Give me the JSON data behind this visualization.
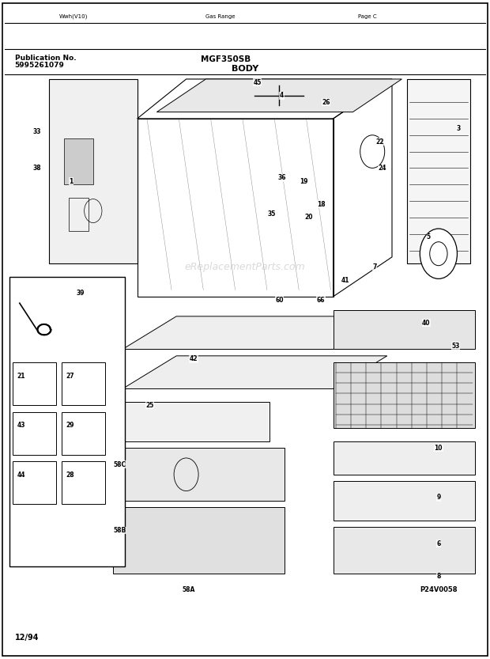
{
  "bg_color": "#ffffff",
  "border_color": "#000000",
  "title_text": "BODY",
  "pub_no_label": "Publication No.",
  "pub_no_value": "5995261079",
  "model_text": "MGF350SB",
  "date_text": "12/94",
  "watermark_text": "eReplacementParts.com",
  "part_code": "P24V0058",
  "nav_texts": [
    "Wwh(V10)",
    "Gas Range",
    "Page C"
  ]
}
